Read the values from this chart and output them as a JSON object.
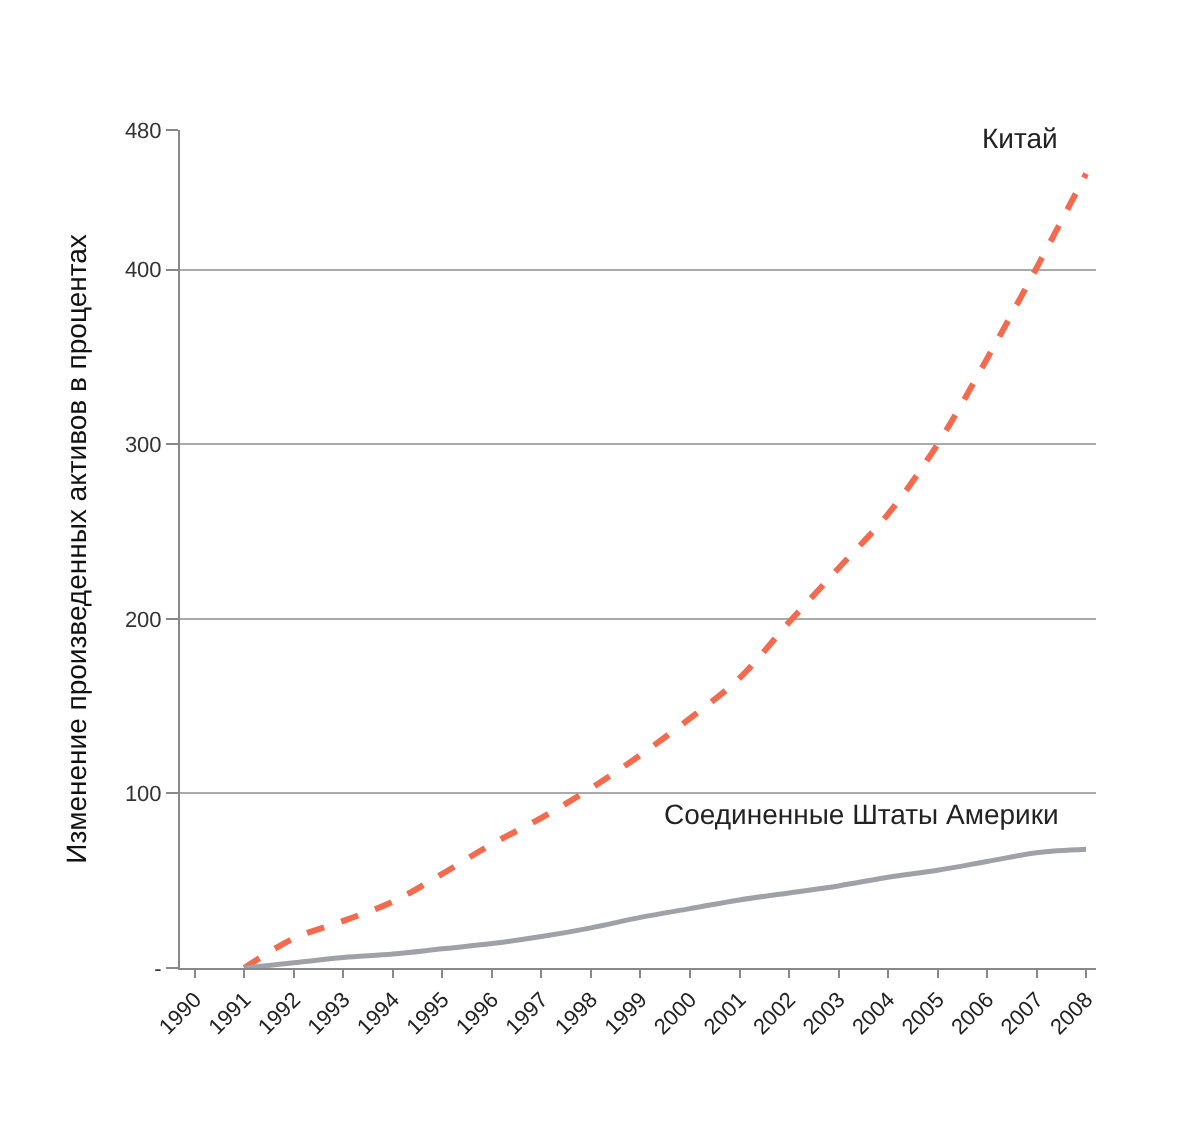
{
  "chart_data": {
    "type": "line",
    "ylabel": "Изменение произведенных активов в процентах",
    "categories": [
      "1990",
      "1991",
      "1992",
      "1993",
      "1994",
      "1995",
      "1996",
      "1997",
      "1998",
      "1999",
      "2000",
      "2001",
      "2002",
      "2003",
      "2004",
      "2005",
      "2006",
      "2007",
      "2008"
    ],
    "series": [
      {
        "name": "Китай",
        "color": "#f26b4e",
        "line_style": "dashed",
        "values": [
          null,
          0,
          17,
          27,
          38,
          54,
          71,
          86,
          103,
          122,
          143,
          166,
          198,
          229,
          260,
          300,
          349,
          401,
          455
        ]
      },
      {
        "name": "Соединенные Штаты Америки",
        "color": "#a0a0a8",
        "line_style": "solid",
        "values": [
          null,
          0,
          3,
          6,
          8,
          11,
          14,
          18,
          23,
          29,
          34,
          39,
          43,
          47,
          52,
          56,
          61,
          66,
          68
        ]
      }
    ],
    "ylim": [
      0,
      480
    ],
    "yticks": [
      {
        "value": 0,
        "label": "-"
      },
      100,
      200,
      300,
      400,
      480
    ],
    "grid": "y",
    "legend": false,
    "marker": "none"
  }
}
